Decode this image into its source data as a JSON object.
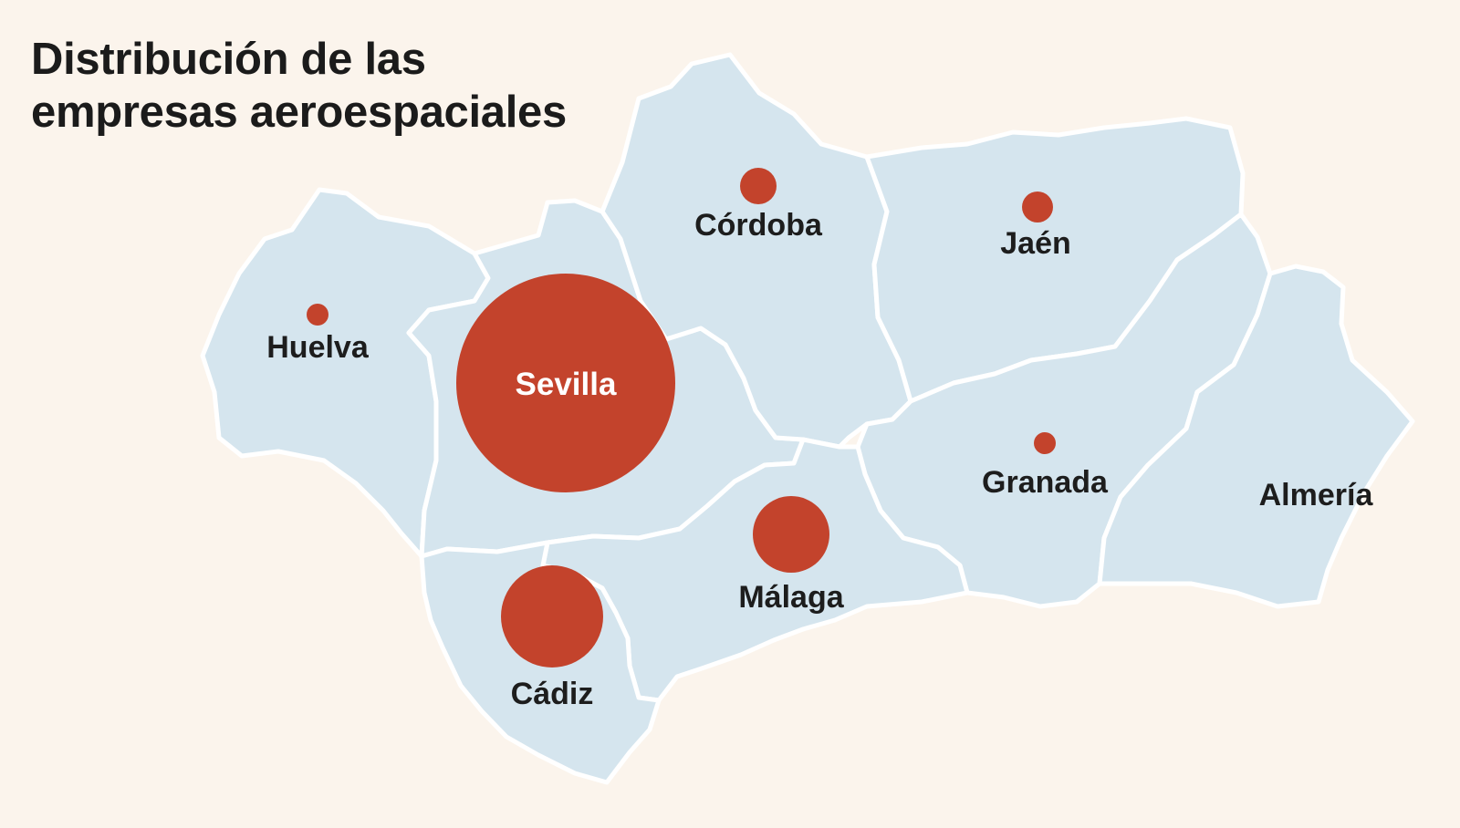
{
  "title": {
    "line1": "Distribución de las",
    "line2": "empresas aeroespaciales"
  },
  "colors": {
    "background": "#fbf4ec",
    "region_fill": "#d5e5ee",
    "border": "#ffffff",
    "bubble": "#c3432c",
    "text": "#1d1d1d"
  },
  "provinces": [
    {
      "id": "huelva",
      "name": "Huelva"
    },
    {
      "id": "sevilla",
      "name": "Sevilla"
    },
    {
      "id": "cordoba",
      "name": "Córdoba"
    },
    {
      "id": "jaen",
      "name": "Jaén"
    },
    {
      "id": "granada",
      "name": "Granada"
    },
    {
      "id": "almeria",
      "name": "Almería"
    },
    {
      "id": "malaga",
      "name": "Málaga"
    },
    {
      "id": "cadiz",
      "name": "Cádiz"
    }
  ]
}
